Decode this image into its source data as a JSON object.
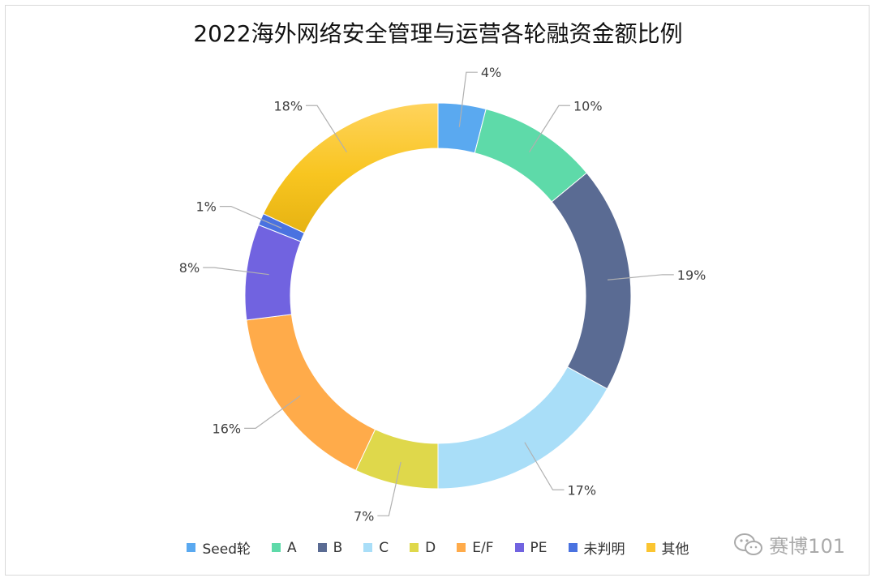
{
  "chart_data": {
    "type": "pie",
    "donut": true,
    "title": "2022海外网络安全管理与运营各轮融资金额比例",
    "unit": "%",
    "start_angle_deg": 0,
    "direction": "clockwise",
    "legend_position": "bottom",
    "slices": [
      {
        "name": "Seed轮",
        "value": 4,
        "label": "4%",
        "color": "#5aa9f0"
      },
      {
        "name": "A",
        "value": 10,
        "label": "10%",
        "color": "#5edaa9"
      },
      {
        "name": "B",
        "value": 19,
        "label": "19%",
        "color": "#5a6b93"
      },
      {
        "name": "C",
        "value": 17,
        "label": "17%",
        "color": "#a9def8"
      },
      {
        "name": "D",
        "value": 7,
        "label": "7%",
        "color": "#dfd84b"
      },
      {
        "name": "E/F",
        "value": 16,
        "label": "16%",
        "color": "#ffab4a"
      },
      {
        "name": "PE",
        "value": 8,
        "label": "8%",
        "color": "#7163e0"
      },
      {
        "name": "未判明",
        "value": 1,
        "label": "1%",
        "color": "#4a72e0"
      },
      {
        "name": "其他",
        "value": 18,
        "label": "18%",
        "color": "#fbc531"
      }
    ]
  },
  "watermark": {
    "text": "赛博101",
    "icon": "wechat-icon"
  }
}
